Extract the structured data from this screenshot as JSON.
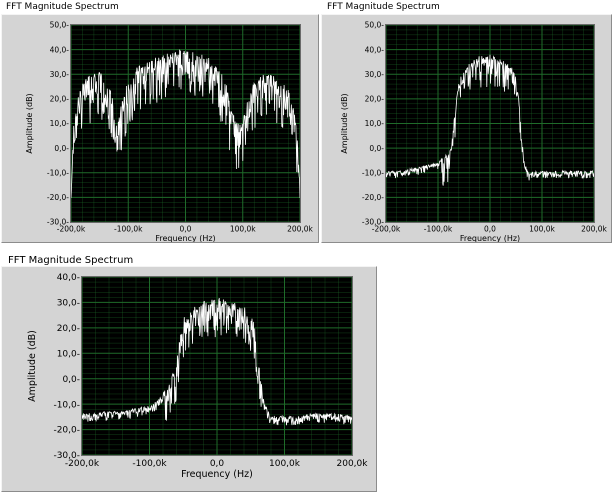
{
  "graphs": [
    {
      "label": "FFT Magnitude Spectrum",
      "chart_data": {
        "type": "line",
        "xlabel": "Frequency (Hz)",
        "ylabel": "Amplitude (dB)",
        "xlim": [
          -200000,
          200000
        ],
        "ylim": [
          -30,
          50
        ],
        "x_ticks": [
          -200000,
          -100000,
          0,
          100000,
          200000
        ],
        "x_tick_labels": [
          "-200,0k",
          "-100,0k",
          "0,0",
          "100,0k",
          "200,0k"
        ],
        "y_ticks": [
          -30,
          -20,
          -10,
          0,
          10,
          20,
          30,
          40,
          50
        ],
        "y_tick_labels": [
          "-30,0-",
          "-20,0-",
          "-10,0-",
          "0,0-",
          "10,0-",
          "20,0-",
          "30,0-",
          "40,0-",
          "50,0-"
        ],
        "grid": true,
        "plot_background": "#000000",
        "grid_color": "#1f6b2a",
        "trace_color": "#ffffff",
        "series": [
          {
            "x": [
              -200000,
              -195000,
              -190000,
              -180000,
              -170000,
              -160000,
              -150000,
              -140000,
              -130000,
              -125000,
              -120000,
              -110000,
              -100000,
              -90000,
              -80000,
              -70000,
              -60000,
              -50000,
              -40000,
              -30000,
              -20000,
              -10000,
              0,
              10000,
              20000,
              30000,
              40000,
              50000,
              60000,
              70000,
              80000,
              90000,
              100000,
              110000,
              120000,
              130000,
              140000,
              150000,
              160000,
              170000,
              180000,
              190000,
              195000,
              200000
            ],
            "y": [
              -18,
              10,
              18,
              24,
              28,
              30,
              29,
              27,
              22,
              15,
              8,
              18,
              26,
              30,
              32,
              33,
              34,
              35,
              36,
              37,
              37,
              38,
              38,
              38,
              37,
              36,
              35,
              33,
              30,
              25,
              15,
              8,
              12,
              20,
              25,
              28,
              29,
              28,
              27,
              25,
              22,
              15,
              5,
              -16
            ]
          }
        ]
      }
    },
    {
      "label": "FFT Magnitude Spectrum",
      "chart_data": {
        "type": "line",
        "xlabel": "Frequency (Hz)",
        "ylabel": "Amplitude (dB)",
        "xlim": [
          -200000,
          200000
        ],
        "ylim": [
          -30,
          50
        ],
        "x_ticks": [
          -200000,
          -100000,
          0,
          100000,
          200000
        ],
        "x_tick_labels": [
          "-200,0k",
          "-100,0k",
          "0,0",
          "100,0k",
          "200,0k"
        ],
        "y_ticks": [
          -30,
          -20,
          -10,
          0,
          10,
          20,
          30,
          40,
          50
        ],
        "y_tick_labels": [
          "-30,0-",
          "-20,0-",
          "-10,0-",
          "0,0-",
          "10,0-",
          "20,0-",
          "30,0-",
          "40,0-",
          "50,0-"
        ],
        "grid": true,
        "plot_background": "#000000",
        "grid_color": "#1f6b2a",
        "trace_color": "#ffffff",
        "series": [
          {
            "x": [
              -200000,
              -180000,
              -160000,
              -140000,
              -120000,
              -100000,
              -90000,
              -80000,
              -75000,
              -70000,
              -65000,
              -60000,
              -50000,
              -40000,
              -30000,
              -20000,
              -10000,
              0,
              10000,
              20000,
              30000,
              40000,
              50000,
              55000,
              60000,
              65000,
              70000,
              75000,
              80000,
              100000,
              120000,
              140000,
              160000,
              180000,
              200000
            ],
            "y": [
              -10,
              -9.5,
              -9,
              -8,
              -7,
              -6,
              -4,
              -2,
              0,
              10,
              20,
              26,
              30,
              33,
              35,
              36,
              37,
              37,
              36,
              35,
              34,
              32,
              28,
              20,
              5,
              -5,
              -8,
              -11,
              -10,
              -9.5,
              -9.5,
              -9.5,
              -9.5,
              -9.5,
              -9.5
            ]
          }
        ]
      }
    },
    {
      "label": "FFT Magnitude Spectrum",
      "chart_data": {
        "type": "line",
        "xlabel": "Frequency (Hz)",
        "ylabel": "Amplitude (dB)",
        "xlim": [
          -200000,
          200000
        ],
        "ylim": [
          -30,
          40
        ],
        "x_ticks": [
          -200000,
          -100000,
          0,
          100000,
          200000
        ],
        "x_tick_labels": [
          "-200,0k",
          "-100,0k",
          "0,0",
          "100,0k",
          "200,0k"
        ],
        "y_ticks": [
          -30,
          -20,
          -10,
          0,
          10,
          20,
          30,
          40
        ],
        "y_tick_labels": [
          "-30,0-",
          "-20,0-",
          "-10,0-",
          "0,0-",
          "10,0-",
          "20,0-",
          "30,0-",
          "40,0-"
        ],
        "grid": true,
        "plot_background": "#000000",
        "grid_color": "#1f6b2a",
        "trace_color": "#ffffff",
        "series": [
          {
            "x": [
              -200000,
              -180000,
              -160000,
              -140000,
              -120000,
              -100000,
              -90000,
              -80000,
              -70000,
              -60000,
              -55000,
              -50000,
              -40000,
              -30000,
              -20000,
              -10000,
              0,
              10000,
              20000,
              30000,
              40000,
              50000,
              55000,
              60000,
              65000,
              70000,
              80000,
              100000,
              120000,
              140000,
              160000,
              180000,
              200000
            ],
            "y": [
              -14,
              -14,
              -13,
              -13,
              -12,
              -11,
              -9,
              -6,
              -2,
              5,
              15,
              22,
              26,
              28,
              29,
              30,
              30,
              30,
              29,
              28,
              27,
              24,
              20,
              10,
              -2,
              -10,
              -15,
              -15,
              -15,
              -14,
              -14,
              -14,
              -15
            ]
          }
        ]
      }
    }
  ]
}
